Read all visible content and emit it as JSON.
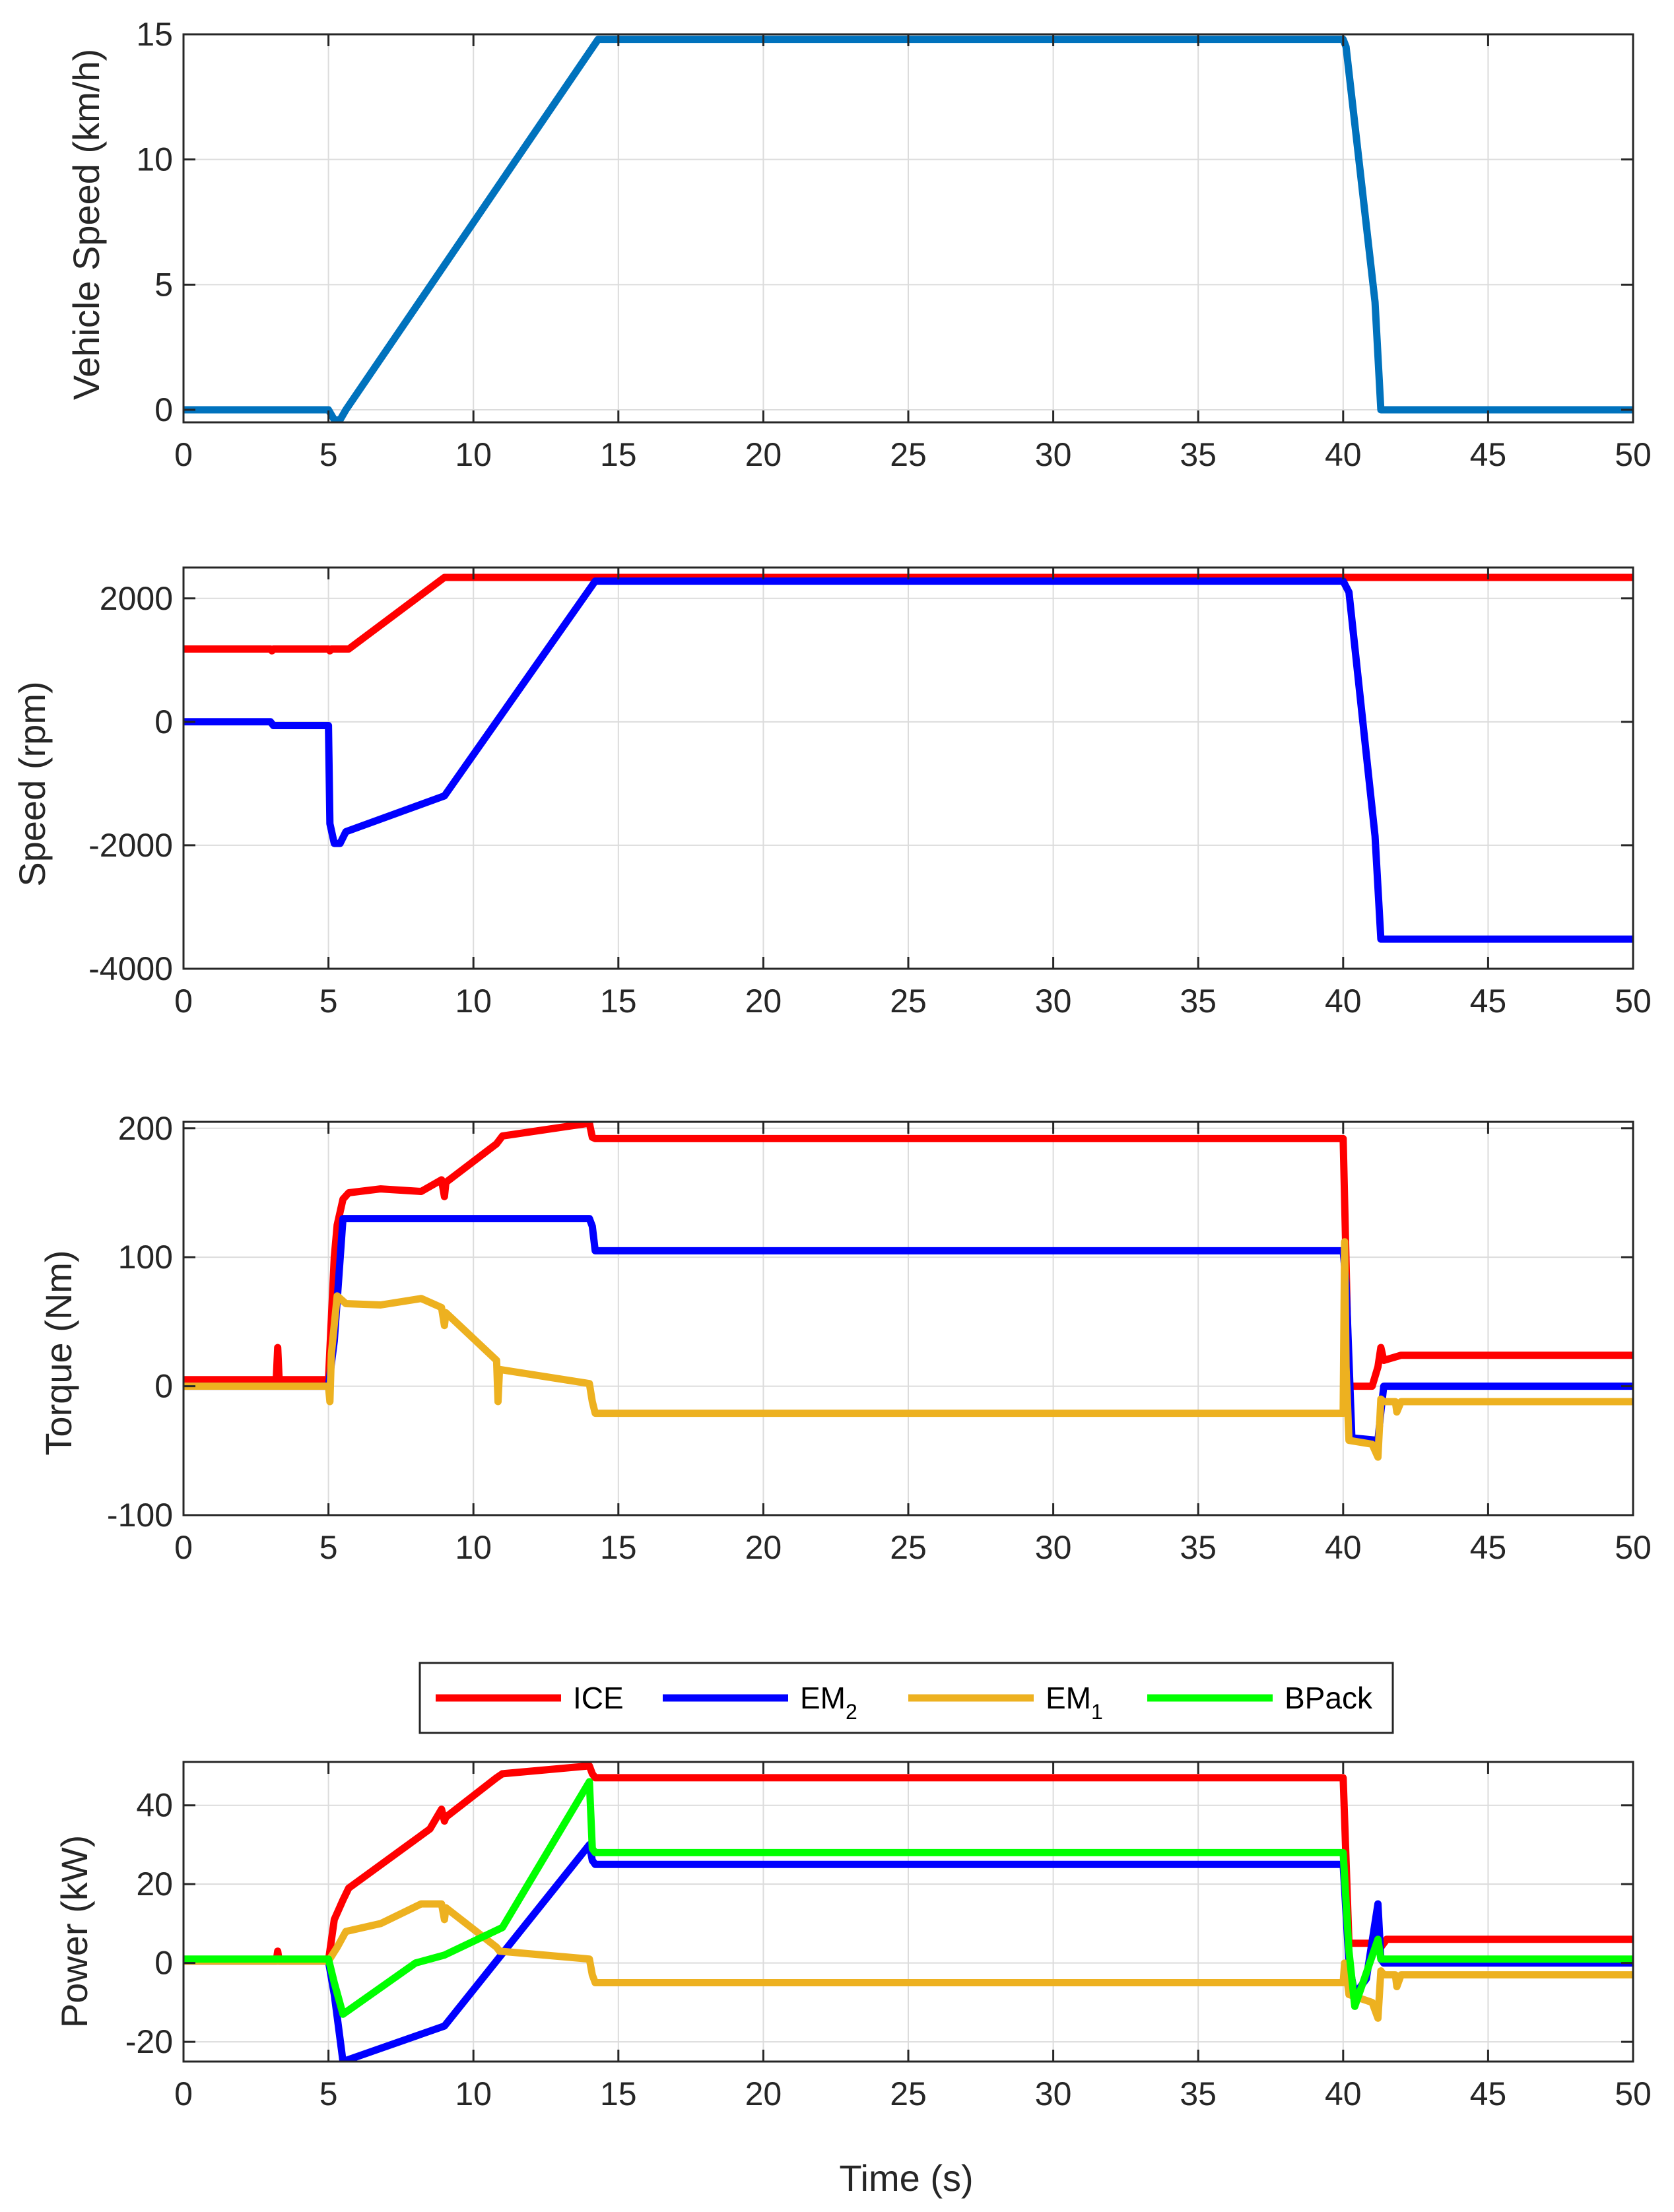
{
  "chart_data": [
    {
      "type": "line",
      "xlabel": "",
      "ylabel": "Vehicle Speed (km/h)",
      "xlim": [
        0,
        50
      ],
      "ylim": [
        -0.5,
        15
      ],
      "xticks": [
        0,
        5,
        10,
        15,
        20,
        25,
        30,
        35,
        40,
        45,
        50
      ],
      "yticks": [
        0,
        5,
        10,
        15
      ],
      "grid": true,
      "series": [
        {
          "name": "Vehicle Speed",
          "color": "#0072BD",
          "x": [
            0,
            5.0,
            5.2,
            5.4,
            5.6,
            14.3,
            40.0,
            40.1,
            41.1,
            41.3,
            50
          ],
          "y": [
            0,
            0,
            -0.4,
            -0.4,
            0,
            14.8,
            14.8,
            14.5,
            4.3,
            0,
            0
          ]
        }
      ]
    },
    {
      "type": "line",
      "xlabel": "",
      "ylabel": "Speed (rpm)",
      "xlim": [
        0,
        50
      ],
      "ylim": [
        -4000,
        2500
      ],
      "xticks": [
        0,
        5,
        10,
        15,
        20,
        25,
        30,
        35,
        40,
        45,
        50
      ],
      "yticks": [
        -4000,
        -2000,
        0,
        2000
      ],
      "grid": true,
      "series": [
        {
          "name": "ICE",
          "color": "#FF0000",
          "x": [
            0,
            3.0,
            3.05,
            3.1,
            5.0,
            5.05,
            5.1,
            5.7,
            9.0,
            50
          ],
          "y": [
            1180,
            1180,
            1150,
            1180,
            1180,
            1150,
            1180,
            1180,
            2340,
            2340
          ]
        },
        {
          "name": "EM2",
          "color": "#0000FF",
          "x": [
            0,
            3.0,
            3.1,
            5.0,
            5.05,
            5.2,
            5.4,
            5.6,
            9.0,
            14.2,
            40.0,
            40.2,
            41.1,
            41.3,
            50
          ],
          "y": [
            0,
            0,
            -60,
            -60,
            -1650,
            -1970,
            -1970,
            -1780,
            -1200,
            2280,
            2280,
            2100,
            -1850,
            -3520,
            -3520
          ]
        }
      ]
    },
    {
      "type": "line",
      "xlabel": "",
      "ylabel": "Torque (Nm)",
      "xlim": [
        0,
        50
      ],
      "ylim": [
        -100,
        205
      ],
      "xticks": [
        0,
        5,
        10,
        15,
        20,
        25,
        30,
        35,
        40,
        45,
        50
      ],
      "yticks": [
        -100,
        0,
        100,
        200
      ],
      "grid": true,
      "series": [
        {
          "name": "ICE",
          "color": "#FF0000",
          "x": [
            0,
            3.2,
            3.25,
            3.3,
            5.0,
            5.2,
            5.3,
            5.5,
            5.7,
            6.8,
            8.2,
            8.9,
            9.0,
            9.05,
            10.8,
            11.0,
            14.0,
            14.1,
            14.2,
            40.0,
            40.2,
            41.0,
            41.2,
            41.3,
            41.4,
            42,
            50
          ],
          "y": [
            5,
            5,
            30,
            5,
            5,
            100,
            125,
            145,
            150,
            153,
            151,
            160,
            147,
            158,
            188,
            194,
            204,
            193,
            192,
            192,
            0,
            0,
            15,
            30,
            20,
            24,
            24
          ]
        },
        {
          "name": "EM2",
          "color": "#0000FF",
          "x": [
            0,
            5.0,
            5.2,
            5.5,
            14.0,
            14.1,
            14.2,
            40.0,
            40.1,
            40.3,
            41.2,
            41.3,
            41.4,
            50
          ],
          "y": [
            0,
            0,
            35,
            130,
            130,
            124,
            105,
            105,
            80,
            -40,
            -42,
            -20,
            0,
            0
          ]
        },
        {
          "name": "EM1",
          "color": "#EDB120",
          "x": [
            0,
            5.0,
            5.05,
            5.1,
            5.3,
            5.6,
            6.8,
            8.2,
            8.9,
            9.0,
            9.05,
            10.8,
            10.85,
            10.9,
            14.0,
            14.1,
            14.2,
            40.0,
            40.05,
            40.1,
            40.2,
            41.0,
            41.2,
            41.3,
            41.4,
            41.8,
            41.85,
            42.0,
            50
          ],
          "y": [
            0,
            0,
            -12,
            25,
            70,
            64,
            63,
            68,
            61,
            47,
            57,
            20,
            -12,
            13,
            2,
            -12,
            -21,
            -21,
            112,
            15,
            -42,
            -45,
            -55,
            -10,
            -12,
            -12,
            -20,
            -12,
            -12
          ]
        }
      ]
    },
    {
      "type": "line",
      "xlabel": "Time (s)",
      "ylabel": "Power (kW)",
      "xlim": [
        0,
        50
      ],
      "ylim": [
        -25,
        51
      ],
      "xticks": [
        0,
        5,
        10,
        15,
        20,
        25,
        30,
        35,
        40,
        45,
        50
      ],
      "yticks": [
        -20,
        0,
        20,
        40
      ],
      "grid": true,
      "legend": {
        "placement": "top-center",
        "orientation": "horizontal",
        "entries": [
          {
            "label": "ICE",
            "sub": ""
          },
          {
            "label": "EM",
            "sub": "2"
          },
          {
            "label": "EM",
            "sub": "1"
          },
          {
            "label": "BPack",
            "sub": ""
          }
        ]
      },
      "series": [
        {
          "name": "ICE",
          "color": "#FF0000",
          "x": [
            0,
            3.2,
            3.25,
            3.3,
            5.0,
            5.2,
            5.5,
            5.7,
            8.5,
            8.9,
            9.0,
            9.05,
            10.8,
            11.0,
            14.0,
            14.1,
            14.2,
            40.0,
            40.2,
            41.0,
            41.2,
            41.5,
            42,
            50
          ],
          "y": [
            0.5,
            0.5,
            3,
            0.5,
            0.5,
            11,
            16,
            19,
            34,
            39,
            36,
            37,
            47,
            48,
            50,
            48,
            47,
            47,
            5,
            5,
            3,
            6,
            6,
            6
          ]
        },
        {
          "name": "EM2",
          "color": "#0000FF",
          "x": [
            0,
            5.0,
            5.2,
            5.5,
            9.0,
            14.0,
            14.1,
            14.2,
            40.0,
            40.2,
            40.4,
            40.8,
            41.2,
            41.3,
            41.4,
            50
          ],
          "y": [
            0.5,
            0.5,
            -8,
            -25,
            -16,
            30,
            26,
            25,
            25,
            0,
            -8,
            -4,
            15,
            1,
            0,
            0
          ]
        },
        {
          "name": "EM1",
          "color": "#EDB120",
          "x": [
            0,
            5.0,
            5.3,
            5.6,
            6.8,
            8.2,
            8.9,
            9.0,
            9.05,
            10.8,
            10.9,
            14.0,
            14.1,
            14.2,
            40.0,
            40.05,
            40.1,
            40.2,
            41.0,
            41.2,
            41.3,
            41.4,
            41.8,
            41.85,
            42.0,
            50
          ],
          "y": [
            0.5,
            0.5,
            4,
            8,
            10,
            15,
            15,
            11,
            14,
            4,
            3,
            1,
            -3,
            -5,
            -5,
            0,
            -2,
            -8,
            -10,
            -14,
            -2,
            -3,
            -3,
            -6,
            -3,
            -3
          ]
        },
        {
          "name": "BPack",
          "color": "#00FF00",
          "x": [
            0,
            5.0,
            5.2,
            5.5,
            8.0,
            9.0,
            11.0,
            14.0,
            14.1,
            14.2,
            40.0,
            40.2,
            40.4,
            41.2,
            41.3,
            41.5,
            50
          ],
          "y": [
            1,
            1,
            -5,
            -13,
            0,
            2,
            9,
            46,
            29,
            28,
            28,
            3,
            -11,
            6,
            1,
            1,
            1
          ]
        }
      ]
    }
  ]
}
